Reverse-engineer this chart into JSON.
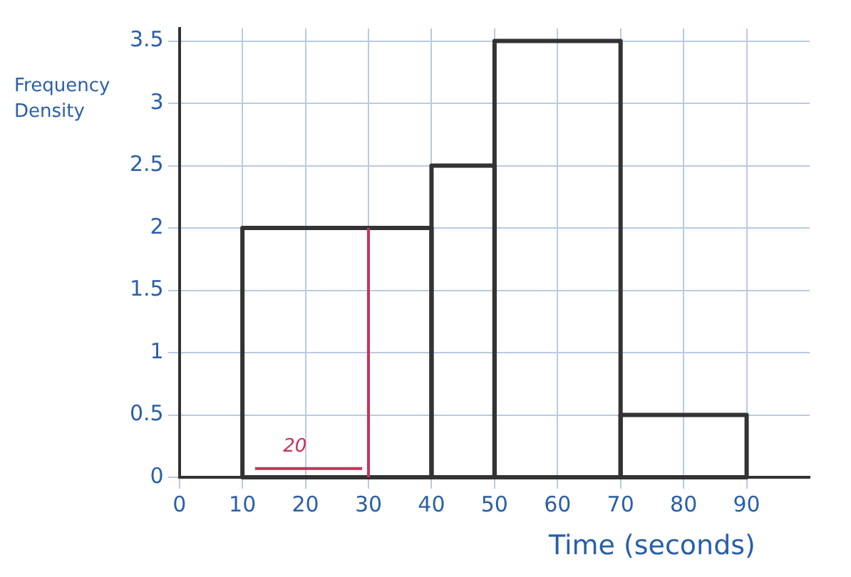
{
  "chart_data": {
    "type": "histogram",
    "xlabel": "Time (seconds)",
    "ylabel": "Frequency Density",
    "bins": [
      10,
      40,
      50,
      70,
      90
    ],
    "values": [
      2,
      2.5,
      3.5,
      0.5
    ],
    "color": "#333333",
    "series": [
      {
        "type": "line",
        "x": [
          30,
          30
        ],
        "values": [
          0,
          2
        ],
        "color": "#c8325a"
      },
      {
        "type": "line",
        "x": [
          12,
          29
        ],
        "values": [
          0.07,
          0.07
        ],
        "color": "#c8325a"
      }
    ],
    "annotations": [
      "20"
    ],
    "xlim": [
      0,
      100
    ],
    "xticks": [
      0,
      10,
      20,
      30,
      40,
      50,
      60,
      70,
      80,
      90
    ],
    "ylim": [
      0,
      3.6
    ],
    "yticks": [
      0,
      0.5,
      1,
      1.5,
      2,
      2.5,
      3,
      3.5
    ],
    "grid": true,
    "legend": false
  }
}
